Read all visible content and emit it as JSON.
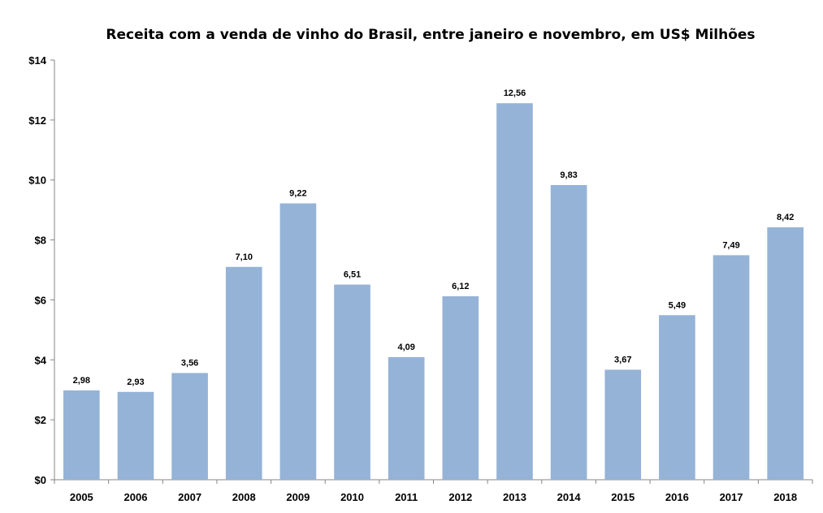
{
  "chart_data": {
    "type": "bar",
    "title": "Receita com a venda de vinho do Brasil, entre janeiro e novembro, em US$ Milhões",
    "xlabel": "",
    "ylabel": "",
    "categories": [
      "2005",
      "2006",
      "2007",
      "2008",
      "2009",
      "2010",
      "2011",
      "2012",
      "2013",
      "2014",
      "2015",
      "2016",
      "2017",
      "2018"
    ],
    "values": [
      2.98,
      2.93,
      3.56,
      7.1,
      9.22,
      6.51,
      4.09,
      6.12,
      12.56,
      9.83,
      3.67,
      5.49,
      7.49,
      8.42
    ],
    "data_labels": [
      "2,98",
      "2,93",
      "3,56",
      "7,10",
      "9,22",
      "6,51",
      "4,09",
      "6,12",
      "12,56",
      "9,83",
      "3,67",
      "5,49",
      "7,49",
      "8,42"
    ],
    "ylim": [
      0,
      14
    ],
    "yticks": [
      0,
      2,
      4,
      6,
      8,
      10,
      12,
      14
    ],
    "ytick_labels": [
      "$0",
      "$2",
      "$4",
      "$6",
      "$8",
      "$10",
      "$12",
      "$14"
    ],
    "grid": false,
    "legend": "none",
    "bar_color": "#95B3D7",
    "axis_color": "#868686"
  }
}
